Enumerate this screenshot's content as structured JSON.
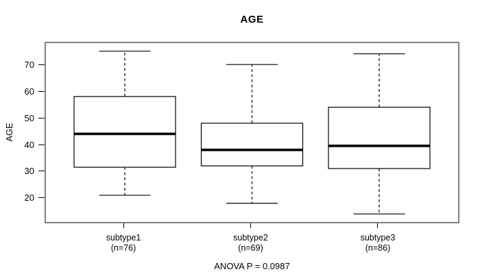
{
  "figure": {
    "background": "#ffffff",
    "frame_color": "#7f7f7f",
    "line_color": "#000000"
  },
  "chart_data": {
    "type": "boxplot",
    "title": "AGE",
    "ylabel": "AGE",
    "xlabel": "",
    "annotation": "ANOVA P = 0.0987",
    "yticks": [
      20,
      30,
      40,
      50,
      60,
      70
    ],
    "ylim": [
      11,
      78
    ],
    "grid": "off",
    "whisker_style": "dashed",
    "groups": [
      {
        "label": "subtype1",
        "sublabel": "(n=76)",
        "n": 76,
        "whisker_low": 21,
        "q1": 31.5,
        "median": 44,
        "q3": 58,
        "whisker_high": 75
      },
      {
        "label": "subtype2",
        "sublabel": "(n=69)",
        "n": 69,
        "whisker_low": 18,
        "q1": 32,
        "median": 38,
        "q3": 48,
        "whisker_high": 70
      },
      {
        "label": "subtype3",
        "sublabel": "(n=86)",
        "n": 86,
        "whisker_low": 14,
        "q1": 31,
        "median": 39.5,
        "q3": 54,
        "whisker_high": 74
      }
    ]
  }
}
